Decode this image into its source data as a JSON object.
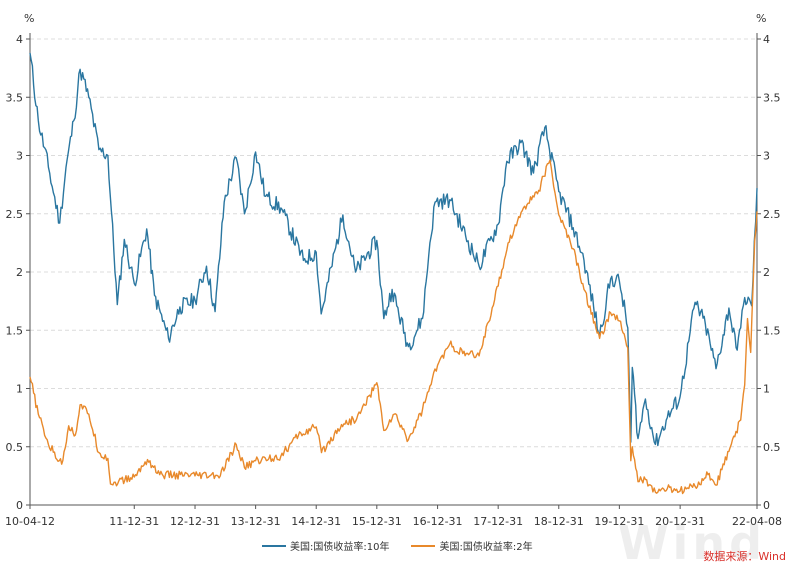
{
  "chart_data": {
    "type": "line",
    "y_unit_left": "%",
    "y_unit_right": "%",
    "ylim": [
      0,
      4
    ],
    "y_ticks": [
      0,
      0.5,
      1,
      1.5,
      2,
      2.5,
      3,
      3.5,
      4
    ],
    "y_tick_labels": [
      "0",
      "0.5",
      "1",
      "1.5",
      "2",
      "2.5",
      "3",
      "3.5",
      "4"
    ],
    "x_range": [
      "2010-04-12",
      "2022-04-08"
    ],
    "x_tick_labels": [
      {
        "date": "2010-04-12",
        "label": "10-04-12"
      },
      {
        "date": "2011-12-31",
        "label": "11-12-31"
      },
      {
        "date": "2012-12-31",
        "label": "12-12-31"
      },
      {
        "date": "2013-12-31",
        "label": "13-12-31"
      },
      {
        "date": "2014-12-31",
        "label": "14-12-31"
      },
      {
        "date": "2015-12-31",
        "label": "15-12-31"
      },
      {
        "date": "2016-12-31",
        "label": "16-12-31"
      },
      {
        "date": "2017-12-31",
        "label": "17-12-31"
      },
      {
        "date": "2018-12-31",
        "label": "18-12-31"
      },
      {
        "date": "2019-12-31",
        "label": "19-12-31"
      },
      {
        "date": "2020-12-31",
        "label": "20-12-31"
      },
      {
        "date": "2022-04-08",
        "label": "22-04-08"
      }
    ],
    "grid": true,
    "legend_position": "bottom-center",
    "series": [
      {
        "name": "美国:国债收益率:10年",
        "color": "#2a76a0",
        "points": [
          [
            "2010-04-12",
            3.88
          ],
          [
            "2010-06-01",
            3.3
          ],
          [
            "2010-08-01",
            2.9
          ],
          [
            "2010-10-08",
            2.42
          ],
          [
            "2010-11-15",
            2.9
          ],
          [
            "2011-01-01",
            3.3
          ],
          [
            "2011-02-08",
            3.74
          ],
          [
            "2011-04-01",
            3.5
          ],
          [
            "2011-06-01",
            3.05
          ],
          [
            "2011-07-25",
            3.0
          ],
          [
            "2011-09-20",
            1.72
          ],
          [
            "2011-11-01",
            2.28
          ],
          [
            "2011-12-31",
            1.9
          ],
          [
            "2012-03-15",
            2.37
          ],
          [
            "2012-05-01",
            1.8
          ],
          [
            "2012-07-24",
            1.43
          ],
          [
            "2012-10-01",
            1.7
          ],
          [
            "2012-12-31",
            1.76
          ],
          [
            "2013-03-10",
            2.05
          ],
          [
            "2013-05-01",
            1.66
          ],
          [
            "2013-06-25",
            2.6
          ],
          [
            "2013-09-05",
            2.98
          ],
          [
            "2013-10-25",
            2.5
          ],
          [
            "2013-12-31",
            3.03
          ],
          [
            "2014-03-01",
            2.65
          ],
          [
            "2014-06-01",
            2.55
          ],
          [
            "2014-10-15",
            2.1
          ],
          [
            "2014-12-31",
            2.17
          ],
          [
            "2015-01-30",
            1.64
          ],
          [
            "2015-06-10",
            2.49
          ],
          [
            "2015-08-25",
            2.0
          ],
          [
            "2015-12-31",
            2.27
          ],
          [
            "2016-02-11",
            1.6
          ],
          [
            "2016-04-01",
            1.85
          ],
          [
            "2016-07-08",
            1.36
          ],
          [
            "2016-10-01",
            1.6
          ],
          [
            "2016-11-15",
            2.25
          ],
          [
            "2016-12-16",
            2.6
          ],
          [
            "2017-03-14",
            2.62
          ],
          [
            "2017-09-07",
            2.05
          ],
          [
            "2017-12-31",
            2.41
          ],
          [
            "2018-02-21",
            2.95
          ],
          [
            "2018-05-17",
            3.11
          ],
          [
            "2018-08-01",
            2.85
          ],
          [
            "2018-10-08",
            3.24
          ],
          [
            "2018-12-31",
            2.69
          ],
          [
            "2019-03-28",
            2.38
          ],
          [
            "2019-06-01",
            2.1
          ],
          [
            "2019-09-03",
            1.45
          ],
          [
            "2019-11-08",
            1.94
          ],
          [
            "2019-12-31",
            1.92
          ],
          [
            "2020-02-20",
            1.52
          ],
          [
            "2020-03-09",
            0.54
          ],
          [
            "2020-03-18",
            1.18
          ],
          [
            "2020-04-21",
            0.57
          ],
          [
            "2020-06-05",
            0.91
          ],
          [
            "2020-08-04",
            0.52
          ],
          [
            "2020-10-15",
            0.75
          ],
          [
            "2020-12-31",
            0.93
          ],
          [
            "2021-03-31",
            1.74
          ],
          [
            "2021-06-01",
            1.55
          ],
          [
            "2021-08-04",
            1.17
          ],
          [
            "2021-10-21",
            1.69
          ],
          [
            "2021-12-03",
            1.35
          ],
          [
            "2021-12-31",
            1.52
          ],
          [
            "2022-01-24",
            1.78
          ],
          [
            "2022-03-07",
            1.71
          ],
          [
            "2022-04-08",
            2.72
          ]
        ]
      },
      {
        "name": "美国:国债收益率:2年",
        "color": "#e8892b",
        "points": [
          [
            "2010-04-12",
            1.1
          ],
          [
            "2010-06-01",
            0.78
          ],
          [
            "2010-08-01",
            0.52
          ],
          [
            "2010-10-20",
            0.35
          ],
          [
            "2010-12-01",
            0.68
          ],
          [
            "2011-01-10",
            0.6
          ],
          [
            "2011-02-08",
            0.86
          ],
          [
            "2011-04-01",
            0.78
          ],
          [
            "2011-06-01",
            0.45
          ],
          [
            "2011-07-25",
            0.4
          ],
          [
            "2011-08-10",
            0.18
          ],
          [
            "2011-12-31",
            0.24
          ],
          [
            "2012-03-20",
            0.39
          ],
          [
            "2012-06-01",
            0.26
          ],
          [
            "2012-12-31",
            0.25
          ],
          [
            "2013-06-01",
            0.25
          ],
          [
            "2013-09-05",
            0.52
          ],
          [
            "2013-10-25",
            0.32
          ],
          [
            "2013-12-31",
            0.38
          ],
          [
            "2014-06-01",
            0.42
          ],
          [
            "2014-09-15",
            0.6
          ],
          [
            "2014-12-31",
            0.67
          ],
          [
            "2015-02-01",
            0.45
          ],
          [
            "2015-06-01",
            0.69
          ],
          [
            "2015-09-01",
            0.74
          ],
          [
            "2015-12-31",
            1.05
          ],
          [
            "2016-02-11",
            0.64
          ],
          [
            "2016-04-15",
            0.78
          ],
          [
            "2016-07-08",
            0.56
          ],
          [
            "2016-10-01",
            0.82
          ],
          [
            "2016-11-15",
            1.02
          ],
          [
            "2016-12-31",
            1.2
          ],
          [
            "2017-03-14",
            1.38
          ],
          [
            "2017-06-01",
            1.3
          ],
          [
            "2017-09-07",
            1.28
          ],
          [
            "2017-12-31",
            1.88
          ],
          [
            "2018-03-01",
            2.25
          ],
          [
            "2018-06-01",
            2.55
          ],
          [
            "2018-09-01",
            2.7
          ],
          [
            "2018-11-08",
            2.96
          ],
          [
            "2018-12-31",
            2.49
          ],
          [
            "2019-03-28",
            2.2
          ],
          [
            "2019-06-01",
            1.85
          ],
          [
            "2019-09-03",
            1.43
          ],
          [
            "2019-11-08",
            1.65
          ],
          [
            "2019-12-31",
            1.58
          ],
          [
            "2020-02-20",
            1.35
          ],
          [
            "2020-03-09",
            0.38
          ],
          [
            "2020-03-18",
            0.5
          ],
          [
            "2020-04-21",
            0.2
          ],
          [
            "2020-06-05",
            0.22
          ],
          [
            "2020-08-04",
            0.11
          ],
          [
            "2020-10-15",
            0.14
          ],
          [
            "2020-12-31",
            0.12
          ],
          [
            "2021-03-31",
            0.16
          ],
          [
            "2021-06-17",
            0.26
          ],
          [
            "2021-08-04",
            0.17
          ],
          [
            "2021-10-21",
            0.46
          ],
          [
            "2021-12-31",
            0.73
          ],
          [
            "2022-01-24",
            1.03
          ],
          [
            "2022-02-10",
            1.6
          ],
          [
            "2022-03-01",
            1.31
          ],
          [
            "2022-03-25",
            2.27
          ],
          [
            "2022-04-08",
            2.52
          ]
        ]
      }
    ]
  },
  "source_label": "数据来源：Wind",
  "watermark": "Wind"
}
